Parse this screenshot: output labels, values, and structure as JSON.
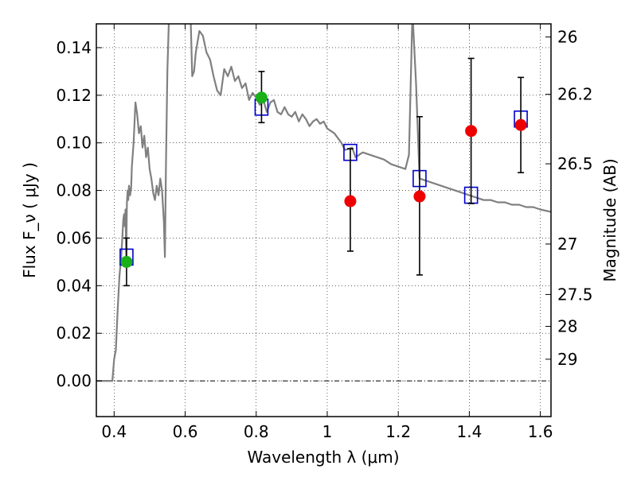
{
  "chart_data": {
    "type": "scatter",
    "xlabel": "Wavelength  λ (μm)",
    "ylabel": "Flux  F_ν  ( μJy )",
    "y2label": "Magnitude (AB)",
    "xlim": [
      0.35,
      1.63
    ],
    "ylim": [
      -0.015,
      0.15
    ],
    "grid": true,
    "x_ticks": [
      {
        "v": 0.4,
        "label": "0.4"
      },
      {
        "v": 0.6,
        "label": "0.6"
      },
      {
        "v": 0.8,
        "label": "0.8"
      },
      {
        "v": 1.0,
        "label": "1"
      },
      {
        "v": 1.2,
        "label": "1.2"
      },
      {
        "v": 1.4,
        "label": "1.4"
      },
      {
        "v": 1.6,
        "label": "1.6"
      }
    ],
    "y_ticks": [
      {
        "v": 0.0,
        "label": "0.00"
      },
      {
        "v": 0.02,
        "label": "0.02"
      },
      {
        "v": 0.04,
        "label": "0.04"
      },
      {
        "v": 0.06,
        "label": "0.06"
      },
      {
        "v": 0.08,
        "label": "0.08"
      },
      {
        "v": 0.1,
        "label": "0.10"
      },
      {
        "v": 0.12,
        "label": "0.12"
      },
      {
        "v": 0.14,
        "label": "0.14"
      }
    ],
    "y2_ticks": [
      {
        "flux": 0.1445,
        "label": "26"
      },
      {
        "flux": 0.1204,
        "label": "26.2"
      },
      {
        "flux": 0.0912,
        "label": "26.5"
      },
      {
        "flux": 0.0575,
        "label": "27"
      },
      {
        "flux": 0.0363,
        "label": "27.5"
      },
      {
        "flux": 0.0229,
        "label": "28"
      },
      {
        "flux": 0.0091,
        "label": "29"
      }
    ],
    "colors": {
      "model": "#808080",
      "model_fluxes": "#0000cc",
      "detections": "#1ab01a",
      "nondetections": "#ee0000",
      "errorbar": "#000000",
      "grid": "#000000"
    },
    "series": [
      {
        "kind": "line",
        "points": [
          [
            0.35,
            0.0
          ],
          [
            0.395,
            0.0
          ],
          [
            0.4,
            0.009
          ],
          [
            0.405,
            0.013
          ],
          [
            0.41,
            0.03
          ],
          [
            0.415,
            0.044
          ],
          [
            0.42,
            0.052
          ],
          [
            0.423,
            0.06
          ],
          [
            0.426,
            0.068
          ],
          [
            0.428,
            0.07
          ],
          [
            0.43,
            0.065
          ],
          [
            0.432,
            0.072
          ],
          [
            0.434,
            0.052
          ],
          [
            0.436,
            0.075
          ],
          [
            0.438,
            0.08
          ],
          [
            0.44,
            0.076
          ],
          [
            0.442,
            0.082
          ],
          [
            0.445,
            0.078
          ],
          [
            0.448,
            0.081
          ],
          [
            0.45,
            0.09
          ],
          [
            0.455,
            0.1
          ],
          [
            0.46,
            0.117
          ],
          [
            0.465,
            0.112
          ],
          [
            0.47,
            0.104
          ],
          [
            0.475,
            0.107
          ],
          [
            0.48,
            0.098
          ],
          [
            0.485,
            0.103
          ],
          [
            0.49,
            0.094
          ],
          [
            0.495,
            0.098
          ],
          [
            0.5,
            0.089
          ],
          [
            0.505,
            0.085
          ],
          [
            0.51,
            0.079
          ],
          [
            0.515,
            0.076
          ],
          [
            0.52,
            0.082
          ],
          [
            0.525,
            0.078
          ],
          [
            0.53,
            0.085
          ],
          [
            0.535,
            0.08
          ],
          [
            0.54,
            0.067
          ],
          [
            0.543,
            0.052
          ],
          [
            0.546,
            0.09
          ],
          [
            0.55,
            0.13
          ],
          [
            0.555,
            0.155
          ],
          [
            0.6,
            0.155
          ],
          [
            0.615,
            0.155
          ],
          [
            0.62,
            0.128
          ],
          [
            0.625,
            0.13
          ],
          [
            0.63,
            0.138
          ],
          [
            0.64,
            0.147
          ],
          [
            0.65,
            0.145
          ],
          [
            0.66,
            0.138
          ],
          [
            0.67,
            0.135
          ],
          [
            0.68,
            0.128
          ],
          [
            0.69,
            0.122
          ],
          [
            0.7,
            0.12
          ],
          [
            0.71,
            0.131
          ],
          [
            0.72,
            0.128
          ],
          [
            0.73,
            0.132
          ],
          [
            0.74,
            0.126
          ],
          [
            0.75,
            0.128
          ],
          [
            0.76,
            0.123
          ],
          [
            0.77,
            0.125
          ],
          [
            0.78,
            0.118
          ],
          [
            0.79,
            0.121
          ],
          [
            0.8,
            0.119
          ],
          [
            0.81,
            0.116
          ],
          [
            0.82,
            0.118
          ],
          [
            0.83,
            0.113
          ],
          [
            0.84,
            0.117
          ],
          [
            0.85,
            0.118
          ],
          [
            0.86,
            0.113
          ],
          [
            0.87,
            0.112
          ],
          [
            0.88,
            0.115
          ],
          [
            0.89,
            0.112
          ],
          [
            0.9,
            0.111
          ],
          [
            0.91,
            0.113
          ],
          [
            0.92,
            0.109
          ],
          [
            0.93,
            0.112
          ],
          [
            0.94,
            0.11
          ],
          [
            0.95,
            0.107
          ],
          [
            0.96,
            0.109
          ],
          [
            0.97,
            0.11
          ],
          [
            0.98,
            0.108
          ],
          [
            0.99,
            0.109
          ],
          [
            1.0,
            0.106
          ],
          [
            1.02,
            0.104
          ],
          [
            1.04,
            0.1
          ],
          [
            1.05,
            0.097
          ],
          [
            1.07,
            0.098
          ],
          [
            1.08,
            0.094
          ],
          [
            1.1,
            0.096
          ],
          [
            1.12,
            0.095
          ],
          [
            1.14,
            0.094
          ],
          [
            1.16,
            0.093
          ],
          [
            1.18,
            0.091
          ],
          [
            1.2,
            0.09
          ],
          [
            1.22,
            0.089
          ],
          [
            1.23,
            0.095
          ],
          [
            1.24,
            0.155
          ],
          [
            1.25,
            0.125
          ],
          [
            1.26,
            0.085
          ],
          [
            1.28,
            0.084
          ],
          [
            1.3,
            0.083
          ],
          [
            1.32,
            0.082
          ],
          [
            1.34,
            0.081
          ],
          [
            1.36,
            0.08
          ],
          [
            1.38,
            0.079
          ],
          [
            1.4,
            0.078
          ],
          [
            1.42,
            0.077
          ],
          [
            1.44,
            0.076
          ],
          [
            1.46,
            0.076
          ],
          [
            1.48,
            0.075
          ],
          [
            1.5,
            0.075
          ],
          [
            1.52,
            0.074
          ],
          [
            1.54,
            0.074
          ],
          [
            1.56,
            0.073
          ],
          [
            1.58,
            0.073
          ],
          [
            1.6,
            0.072
          ],
          [
            1.63,
            0.071
          ]
        ]
      },
      {
        "kind": "squares",
        "points": [
          [
            0.435,
            0.052
          ],
          [
            0.815,
            0.115
          ],
          [
            1.065,
            0.096
          ],
          [
            1.26,
            0.085
          ],
          [
            1.405,
            0.078
          ],
          [
            1.545,
            0.11
          ]
        ]
      },
      {
        "kind": "points",
        "points": [
          [
            0.435,
            0.05
          ],
          [
            0.815,
            0.119
          ]
        ]
      },
      {
        "kind": "points",
        "points": [
          [
            1.065,
            0.0755
          ],
          [
            1.26,
            0.0775
          ],
          [
            1.405,
            0.105
          ],
          [
            1.545,
            0.1075
          ]
        ]
      },
      {
        "kind": "errorbars",
        "points": [
          {
            "x": 0.435,
            "low": 0.04,
            "high": 0.06
          },
          {
            "x": 0.815,
            "low": 0.1085,
            "high": 0.13
          },
          {
            "x": 1.065,
            "low": 0.0545,
            "high": 0.0975
          },
          {
            "x": 1.26,
            "low": 0.0445,
            "high": 0.111
          },
          {
            "x": 1.405,
            "low": 0.0745,
            "high": 0.1355
          },
          {
            "x": 1.545,
            "low": 0.0875,
            "high": 0.1275
          }
        ]
      }
    ]
  }
}
